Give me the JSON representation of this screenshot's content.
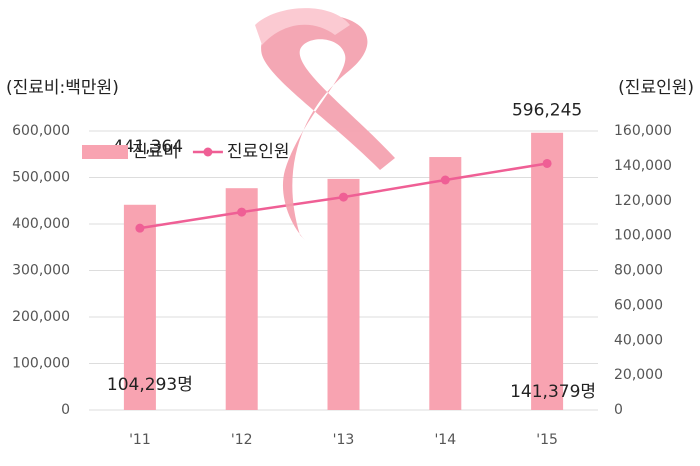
{
  "chart_data": {
    "type": "bar_line",
    "y_label": "(진료비:백만원)",
    "y2_label": "(진료인원)",
    "categories": [
      "'11",
      "'12",
      "'13",
      "'14",
      "'15"
    ],
    "series": [
      {
        "name": "진료비",
        "type": "bar",
        "color": "#f8a3b1",
        "values": [
          441364,
          477000,
          497000,
          544000,
          596245
        ],
        "value_labels": [
          "441,364",
          null,
          null,
          null,
          "596,245"
        ]
      },
      {
        "name": "진료인원",
        "type": "line",
        "axis": "y2",
        "color": "#ef5f95",
        "values": [
          104293,
          113500,
          122100,
          131900,
          141379
        ],
        "value_labels": [
          "104,293명",
          null,
          null,
          null,
          "141,379명"
        ]
      }
    ],
    "ylim": [
      0,
      600000
    ],
    "yticks": [
      0,
      {
        "value": 100000,
        "label": "100,000"
      },
      {
        "value": 200000,
        "label": "200,000"
      },
      {
        "value": 300000,
        "label": "300,000"
      },
      {
        "value": 400000,
        "label": "400,000"
      },
      {
        "value": 500000,
        "label": "500,000"
      },
      {
        "value": 600000,
        "label": "600,000"
      }
    ],
    "y2lim": [
      0,
      160000
    ],
    "y2ticks": [
      0,
      {
        "value": 20000,
        "label": "20,000"
      },
      {
        "value": 40000,
        "label": "40,000"
      },
      {
        "value": 60000,
        "label": "60,000"
      },
      {
        "value": 80000,
        "label": "80,000"
      },
      {
        "value": 100000,
        "label": "100,000"
      },
      {
        "value": 120000,
        "label": "120,000"
      },
      {
        "value": 140000,
        "label": "140,000"
      },
      {
        "value": 160000,
        "label": "160,000"
      }
    ],
    "grid": true,
    "legend": "upper left"
  }
}
